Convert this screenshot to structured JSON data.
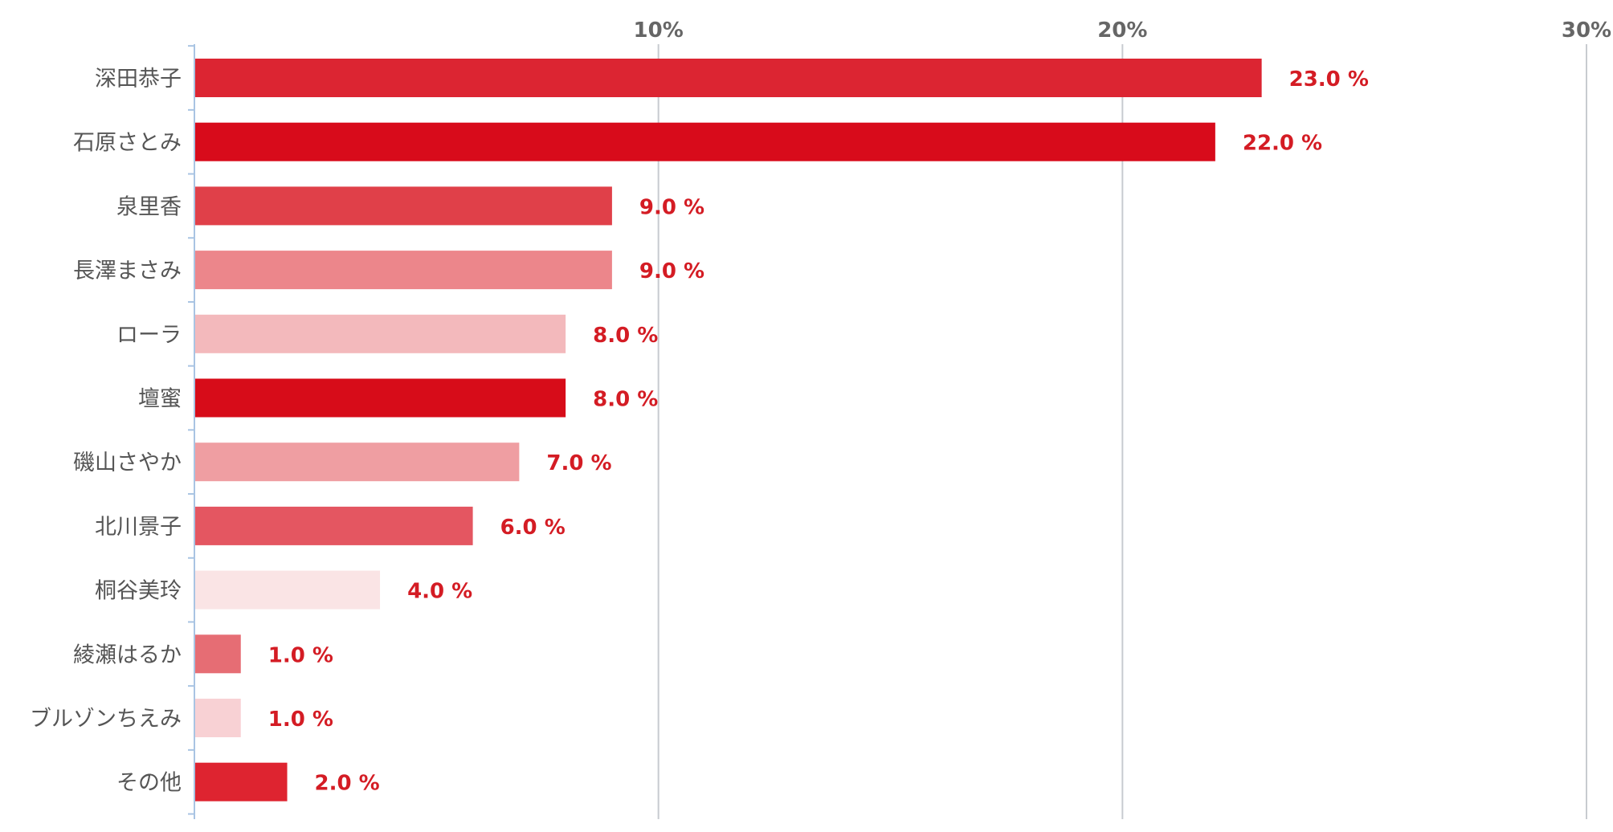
{
  "chart_data": {
    "type": "bar",
    "orientation": "horizontal",
    "categories": [
      "深田恭子",
      "石原さとみ",
      "泉里香",
      "長澤まさみ",
      "ローラ",
      "壇蜜",
      "磯山さやか",
      "北川景子",
      "桐谷美玲",
      "綾瀬はるか",
      "ブルゾンちえみ",
      "その他"
    ],
    "values": [
      23.0,
      22.0,
      9.0,
      9.0,
      8.0,
      8.0,
      7.0,
      6.0,
      4.0,
      1.0,
      1.0,
      2.0
    ],
    "value_labels": [
      "23.0 %",
      "22.0 %",
      "9.0 %",
      "9.0 %",
      "8.0 %",
      "8.0 %",
      "7.0 %",
      "6.0 %",
      "4.0 %",
      "1.0 %",
      "1.0 %",
      "2.0 %"
    ],
    "bar_colors": [
      "#dc2532",
      "#d80b1b",
      "#e04049",
      "#ec868b",
      "#f3b9bc",
      "#d70c19",
      "#ef9ea2",
      "#e45661",
      "#fae4e5",
      "#e66d74",
      "#f8d1d4",
      "#de2430"
    ],
    "x_ticks": [
      10,
      20,
      30
    ],
    "x_tick_labels": [
      "10%",
      "20%",
      "30%"
    ],
    "xlim": [
      0,
      30
    ],
    "grid": true,
    "legend": "none",
    "colors": {
      "value_label": "#d41c24",
      "category_label": "#555555",
      "tick_label": "#666666",
      "gridline": "#c8cbd0",
      "axis": "#a9c4e3"
    }
  }
}
